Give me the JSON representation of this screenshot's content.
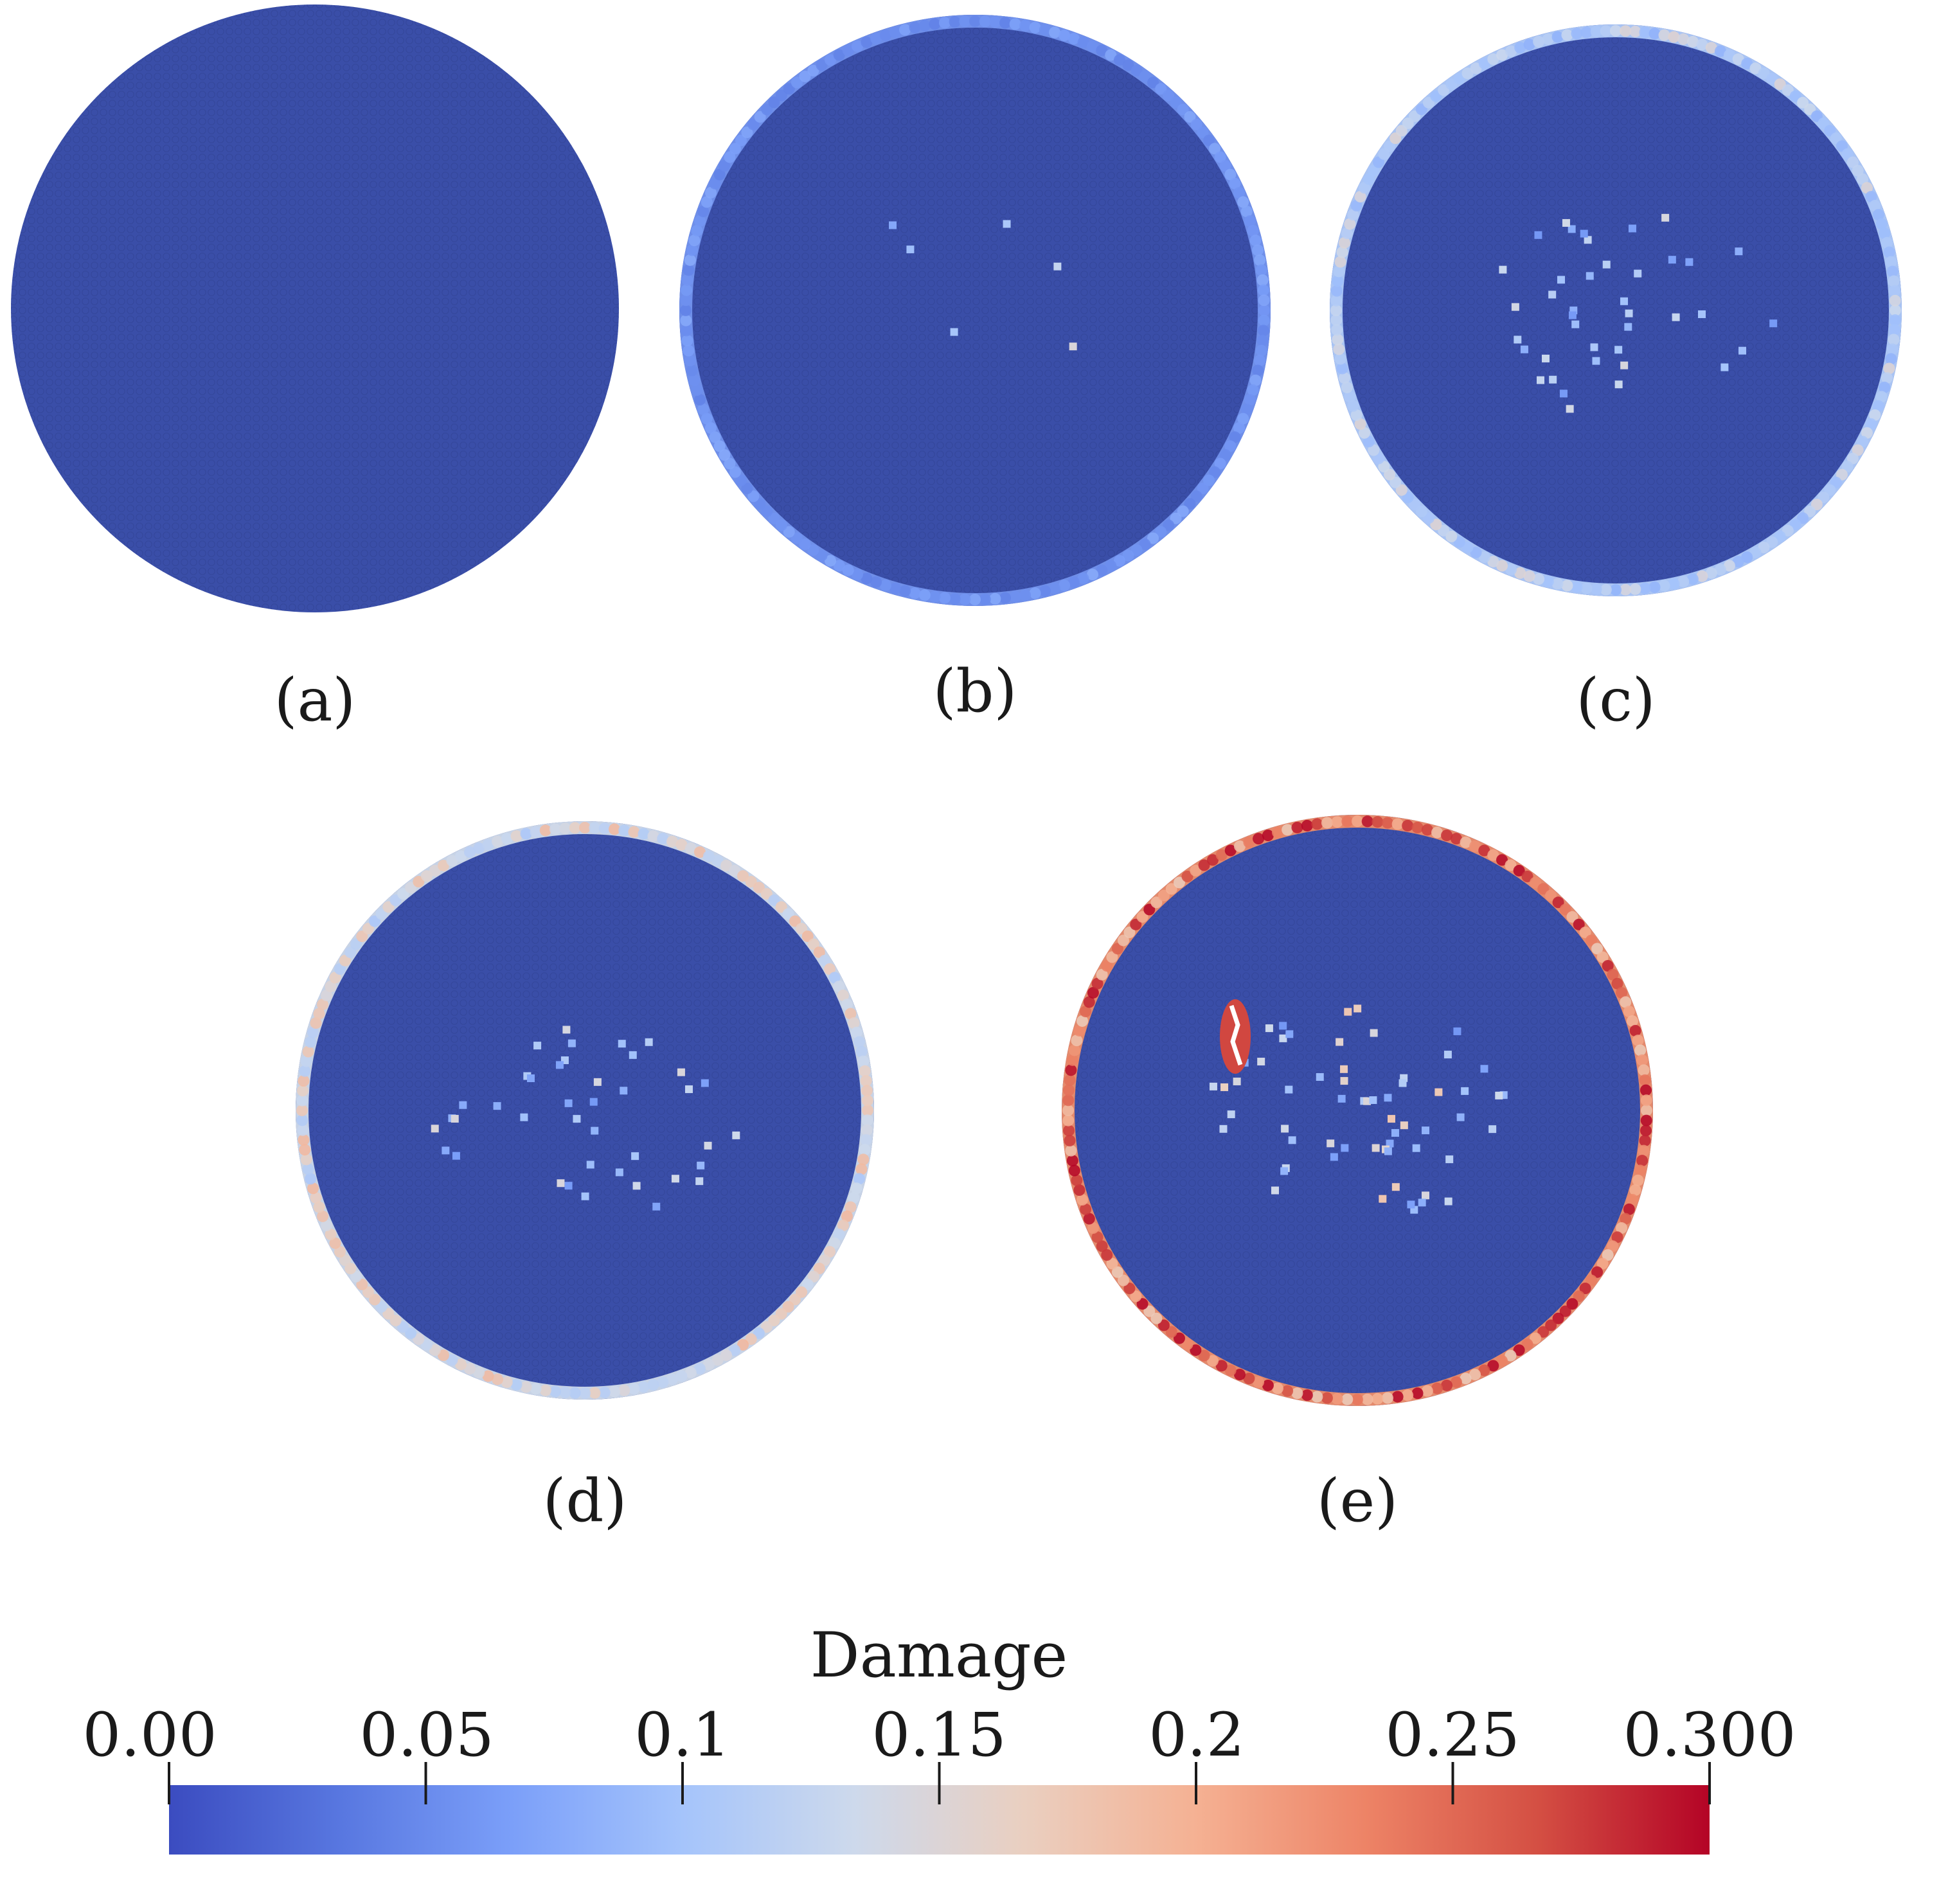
{
  "panels": [
    {
      "id": "a",
      "label": "(a)",
      "boundary_damage": 0.0,
      "rim_color": "#3b4cc0",
      "center_damage": "none"
    },
    {
      "id": "b",
      "label": "(b)",
      "boundary_damage": 0.06,
      "rim_color": "#6f8fe9",
      "center_damage": "minimal"
    },
    {
      "id": "c",
      "label": "(c)",
      "boundary_damage": 0.12,
      "rim_color": "#a9c4f4",
      "center_damage": "scattered"
    },
    {
      "id": "d",
      "label": "(d)",
      "boundary_damage": 0.15,
      "rim_color": "#c7d3e6",
      "center_damage": "scattered"
    },
    {
      "id": "e",
      "label": "(e)",
      "boundary_damage": 0.24,
      "rim_color": "#e48a6c",
      "center_damage": "localized crack"
    }
  ],
  "colormap": {
    "name": "coolwarm",
    "stops": [
      "#3b4cc0",
      "#5877e0",
      "#7b9ff9",
      "#a5c4fb",
      "#cdd9ec",
      "#eacfc0",
      "#f5b193",
      "#ed8366",
      "#d44f43",
      "#b40426"
    ]
  },
  "colorbar": {
    "title": "Damage",
    "ticks": [
      "0.00",
      "0.05",
      "0.1",
      "0.15",
      "0.2",
      "0.25",
      "0.300"
    ]
  },
  "disc_fill": "#3a4ea8"
}
